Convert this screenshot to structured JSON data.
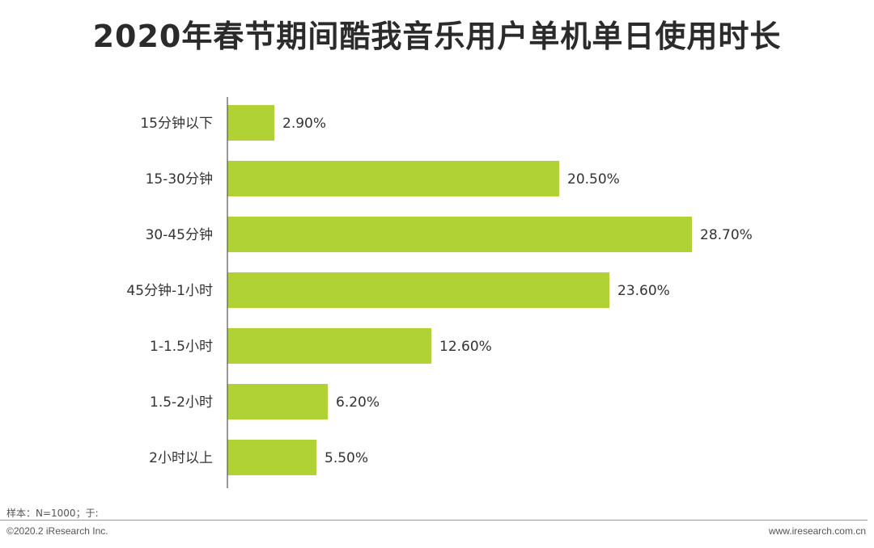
{
  "footer": {
    "note": "样本：N=1000；于:",
    "copyright": "©2020.2 iResearch Inc.",
    "site": "www.iresearch.com.cn"
  },
  "chart_data": {
    "type": "bar",
    "orientation": "horizontal",
    "title": "2020年春节期间酷我音乐用户单机单日使用时长",
    "categories": [
      "15分钟以下",
      "15-30分钟",
      "30-45分钟",
      "45分钟-1小时",
      "1-1.5小时",
      "1.5-2小时",
      "2小时以上"
    ],
    "values": [
      2.9,
      20.5,
      28.7,
      23.6,
      12.6,
      6.2,
      5.5
    ],
    "value_labels": [
      "2.90%",
      "20.50%",
      "28.70%",
      "23.60%",
      "12.60%",
      "6.20%",
      "5.50%"
    ],
    "unit": "%",
    "xlim": [
      0,
      30
    ],
    "bar_color": "#b0d235",
    "axis_color": "#555555",
    "grid": false,
    "legend": "none"
  }
}
